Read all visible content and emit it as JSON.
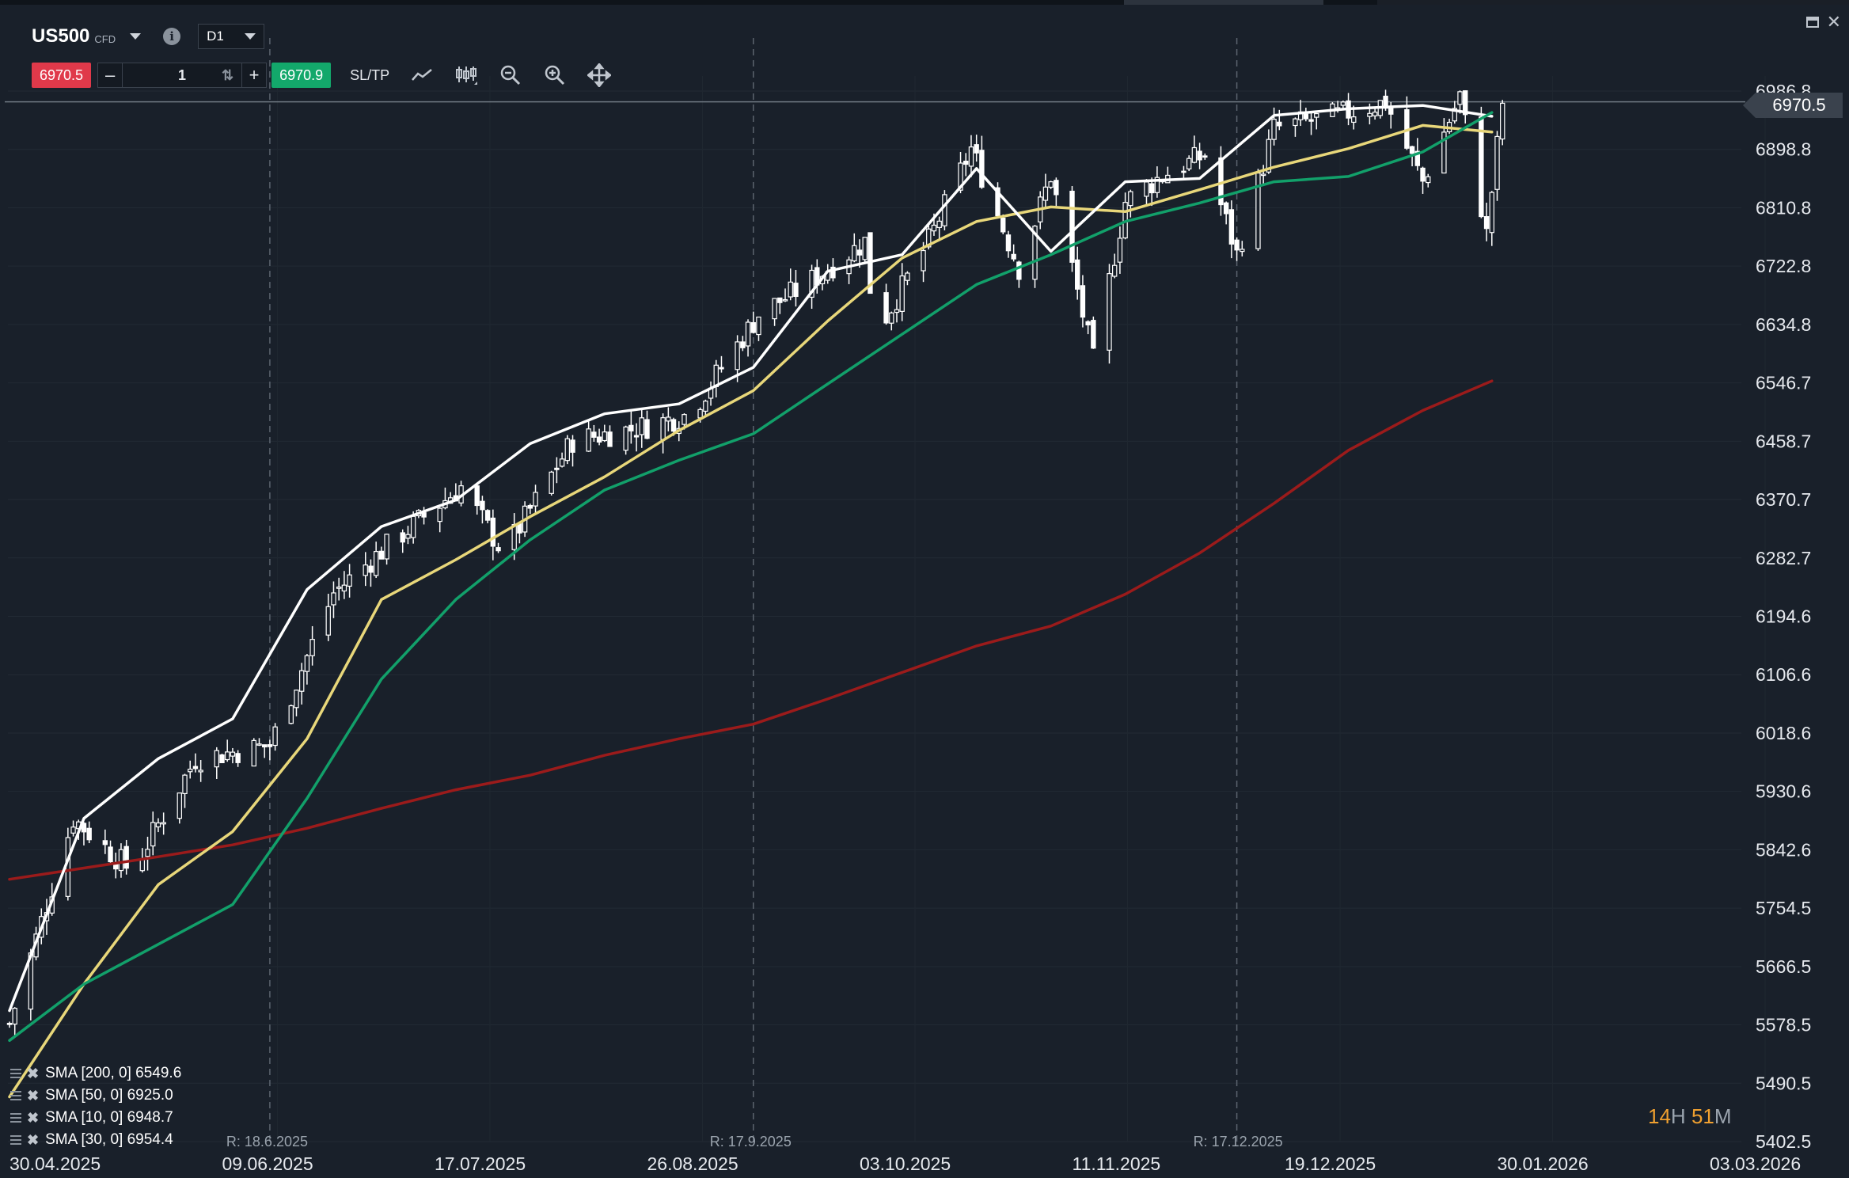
{
  "header": {
    "symbol": "US500",
    "instrument_type": "CFD",
    "timeframe": "D1",
    "info_icon": "info-icon"
  },
  "trade": {
    "sell_price": "6970.5",
    "quantity": "1",
    "buy_price": "6970.9",
    "sltp_label": "SL/TP"
  },
  "toolbar_icons": [
    "line-chart-icon",
    "candles-icon",
    "zoom-out-icon",
    "zoom-in-icon",
    "move-icon"
  ],
  "current_price_tag": "6970.5",
  "timer": {
    "hours": "14",
    "h": "H",
    "minutes": "51",
    "m": "M"
  },
  "legend": [
    {
      "label": "SMA [200, 0] 6549.6",
      "color": "#9b1b1b"
    },
    {
      "label": "SMA [50, 0] 6925.0",
      "color": "#e8d77a"
    },
    {
      "label": "SMA [10, 0] 6948.7",
      "color": "#ffffff"
    },
    {
      "label": "SMA [30, 0] 6954.4",
      "color": "#12a06a"
    }
  ],
  "colors": {
    "background": "#19202a",
    "sell": "#e0394a",
    "buy": "#13a86b",
    "sma200": "#9b1b1b",
    "sma50": "#e8d77a",
    "sma10": "#ffffff",
    "sma30": "#12a06a",
    "candle": "#ffffff",
    "timer_accent": "#f0a030"
  },
  "chart_data": {
    "type": "line",
    "subtype": "candlestick with moving averages",
    "title": "",
    "ylim": [
      5402.5,
      7000
    ],
    "y_ticks": [
      "5402.5",
      "5490.5",
      "5578.5",
      "5666.5",
      "5754.5",
      "5842.6",
      "5930.6",
      "6018.6",
      "6106.6",
      "6194.6",
      "6282.7",
      "6370.7",
      "6458.7",
      "6546.7",
      "6634.8",
      "6722.8",
      "6810.8",
      "6898.8",
      "6986.8"
    ],
    "x_labels": [
      "30.04.2025",
      "09.06.2025",
      "17.07.2025",
      "26.08.2025",
      "03.10.2025",
      "11.11.2025",
      "19.12.2025",
      "30.01.2026",
      "03.03.2026"
    ],
    "rollover_markers": [
      "R: 18.6.2025",
      "R: 17.9.2025",
      "R: 17.12.2025"
    ],
    "current_price": 6970.5,
    "x": [
      "2025-04-30",
      "2025-05-14",
      "2025-05-28",
      "2025-06-11",
      "2025-06-25",
      "2025-07-09",
      "2025-07-23",
      "2025-08-06",
      "2025-08-20",
      "2025-09-03",
      "2025-09-17",
      "2025-10-01",
      "2025-10-15",
      "2025-10-29",
      "2025-11-12",
      "2025-11-26",
      "2025-12-10",
      "2025-12-24",
      "2026-01-07",
      "2026-01-21",
      "2026-02-03"
    ],
    "series": [
      {
        "name": "SMA [200, 0] 6549.6",
        "values": [
          5798,
          5815,
          5832,
          5850,
          5875,
          5905,
          5933,
          5955,
          5985,
          6010,
          6032,
          6070,
          6110,
          6150,
          6180,
          6228,
          6290,
          6365,
          6445,
          6505,
          6549.6
        ]
      },
      {
        "name": "SMA [50, 0] 6925.0",
        "values": [
          5470,
          5640,
          5790,
          5870,
          6010,
          6220,
          6280,
          6345,
          6405,
          6475,
          6535,
          6640,
          6735,
          6790,
          6812,
          6805,
          6838,
          6872,
          6900,
          6935,
          6925.0
        ]
      },
      {
        "name": "SMA [10, 0] 6948.7",
        "values": [
          5600,
          5890,
          5980,
          6040,
          6235,
          6330,
          6370,
          6455,
          6500,
          6515,
          6570,
          6715,
          6740,
          6870,
          6745,
          6850,
          6855,
          6950,
          6960,
          6965,
          6948.7
        ]
      },
      {
        "name": "SMA [30, 0] 6954.4",
        "values": [
          5555,
          5640,
          5700,
          5760,
          5920,
          6100,
          6220,
          6310,
          6385,
          6430,
          6470,
          6545,
          6620,
          6695,
          6740,
          6790,
          6818,
          6850,
          6858,
          6895,
          6954.4
        ]
      }
    ],
    "price_path": [
      [
        "2025-04-30",
        5580
      ],
      [
        "2025-05-12",
        5890
      ],
      [
        "2025-05-23",
        5810
      ],
      [
        "2025-06-04",
        5980
      ],
      [
        "2025-06-18",
        6000
      ],
      [
        "2025-06-30",
        6230
      ],
      [
        "2025-07-10",
        6300
      ],
      [
        "2025-07-24",
        6390
      ],
      [
        "2025-08-01",
        6290
      ],
      [
        "2025-08-14",
        6460
      ],
      [
        "2025-08-27",
        6480
      ],
      [
        "2025-09-05",
        6500
      ],
      [
        "2025-09-18",
        6650
      ],
      [
        "2025-09-26",
        6690
      ],
      [
        "2025-10-08",
        6760
      ],
      [
        "2025-10-10",
        6620
      ],
      [
        "2025-10-20",
        6760
      ],
      [
        "2025-10-28",
        6900
      ],
      [
        "2025-11-06",
        6720
      ],
      [
        "2025-11-12",
        6860
      ],
      [
        "2025-11-20",
        6580
      ],
      [
        "2025-11-26",
        6820
      ],
      [
        "2025-12-03",
        6860
      ],
      [
        "2025-12-11",
        6890
      ],
      [
        "2025-12-17",
        6740
      ],
      [
        "2025-12-24",
        6930
      ],
      [
        "2026-01-05",
        6950
      ],
      [
        "2026-01-14",
        6970
      ],
      [
        "2026-01-21",
        6850
      ],
      [
        "2026-01-28",
        6980
      ],
      [
        "2026-02-02",
        6770
      ],
      [
        "2026-02-05",
        6970
      ]
    ]
  }
}
